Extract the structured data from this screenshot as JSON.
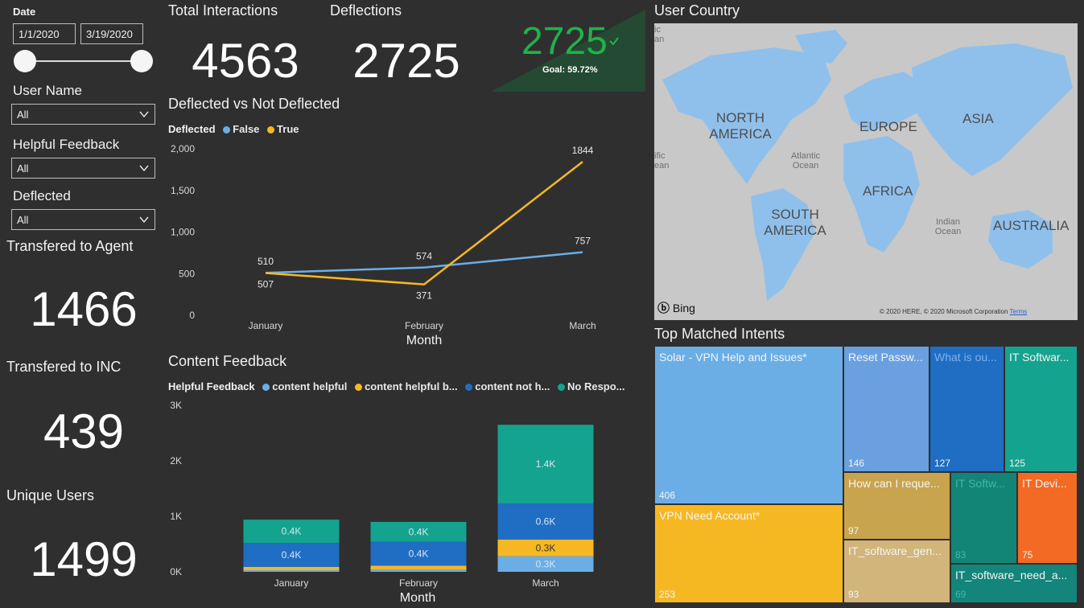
{
  "slicers": {
    "date_label": "Date",
    "date_start": "1/1/2020",
    "date_end": "3/19/2020",
    "user_name_label": "User Name",
    "user_name_value": "All",
    "helpful_label": "Helpful Feedback",
    "helpful_value": "All",
    "deflected_label": "Deflected",
    "deflected_value": "All"
  },
  "kpis": {
    "transferred_agent_label": "Transfered to Agent",
    "transferred_agent_value": "1466",
    "transferred_inc_label": "Transfered to INC",
    "transferred_inc_value": "439",
    "unique_users_label": "Unique Users",
    "unique_users_value": "1499",
    "total_interactions_label": "Total Interactions",
    "total_interactions_value": "4563",
    "deflections_label": "Deflections",
    "deflections_value": "2725",
    "gauge_value": "2725",
    "gauge_goal": "Goal: 59.72%"
  },
  "colors": {
    "false_blue": "#6baee6",
    "true_orange": "#f6b822",
    "dark_blue": "#1f6ec4",
    "teal": "#14a38f",
    "goal_green": "#1fb24a"
  },
  "chart_data": [
    {
      "type": "line",
      "title": "Deflected vs Not Deflected",
      "legend_title": "Deflected",
      "categories": [
        "January",
        "February",
        "March"
      ],
      "xlabel": "Month",
      "ylabel": "",
      "ylim": [
        0,
        2000
      ],
      "yticks": [
        "2,000",
        "1,500",
        "1,000",
        "500",
        "0"
      ],
      "legend_position": "top-left",
      "series": [
        {
          "name": "False",
          "values": [
            510,
            574,
            757
          ],
          "color": "#6baee6"
        },
        {
          "name": "True",
          "values": [
            507,
            371,
            1844
          ],
          "color": "#f6b822"
        }
      ]
    },
    {
      "type": "bar",
      "stacked": true,
      "title": "Content Feedback",
      "legend_title": "Helpful Feedback",
      "categories": [
        "January",
        "February",
        "March"
      ],
      "xlabel": "Month",
      "ylim": [
        0,
        3000
      ],
      "yticks": [
        "3K",
        "2K",
        "1K",
        "0K"
      ],
      "series": [
        {
          "name": "content helpful",
          "values": [
            30,
            40,
            280
          ],
          "labels": [
            "",
            "",
            "0.3K"
          ],
          "color": "#6baee6"
        },
        {
          "name": "content helpful b...",
          "values": [
            60,
            70,
            300
          ],
          "labels": [
            "",
            "",
            "0.3K"
          ],
          "color": "#f6b822"
        },
        {
          "name": "content not h...",
          "values": [
            430,
            430,
            650
          ],
          "labels": [
            "0.4K",
            "0.4K",
            "0.6K"
          ],
          "color": "#1f6ec4"
        },
        {
          "name": "No Respo...",
          "values": [
            420,
            360,
            1420
          ],
          "labels": [
            "0.4K",
            "0.4K",
            "1.4K"
          ],
          "color": "#14a38f"
        }
      ]
    }
  ],
  "map": {
    "title": "User Country",
    "labels": {
      "north_america": "NORTH AMERICA",
      "europe": "EUROPE",
      "asia": "ASIA",
      "africa": "AFRICA",
      "south_america": "SOUTH AMERICA",
      "australia": "AUSTRALIA",
      "atlantic": "Atlantic Ocean",
      "indian": "Indian Ocean",
      "pacific": "ific ean",
      "left_ocean": "ic an"
    },
    "bing": "Bing",
    "copyright": "© 2020 HERE, © 2020 Microsoft Corporation",
    "terms": "Terms"
  },
  "treemap": {
    "title": "Top Matched Intents",
    "cells": [
      {
        "label": "Solar - VPN Help and Issues*",
        "value": "406",
        "color": "#6baee6"
      },
      {
        "label": "VPN Need Account*",
        "value": "253",
        "color": "#f6b822"
      },
      {
        "label": "Reset Passw...",
        "value": "146",
        "color": "#6aa0e0"
      },
      {
        "label": "What is ou...",
        "value": "127",
        "color": "#1f6ec4"
      },
      {
        "label": "IT Softwar...",
        "value": "125",
        "color": "#14a38f"
      },
      {
        "label": "How can I reque...",
        "value": "97",
        "color": "#c9a44e"
      },
      {
        "label": "IT_software_gen...",
        "value": "93",
        "color": "#d1b57a"
      },
      {
        "label": "IT Softw...",
        "value": "83",
        "color": "#138577"
      },
      {
        "label": "IT Devi...",
        "value": "75",
        "color": "#f26a24"
      },
      {
        "label": "IT_software_need_a...",
        "value": "69",
        "color": "#13857b"
      }
    ]
  }
}
